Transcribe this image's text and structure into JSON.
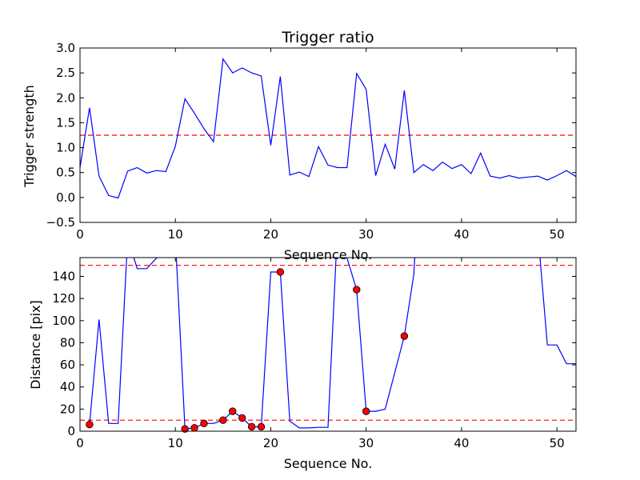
{
  "chart_data": [
    {
      "type": "line",
      "title": "Trigger ratio",
      "xlabel": "Sequence No.",
      "ylabel": "Trigger strength",
      "xlim": [
        0,
        52
      ],
      "ylim": [
        -0.5,
        3.0
      ],
      "xticks": [
        "0",
        "10",
        "20",
        "30",
        "40",
        "50"
      ],
      "yticks": [
        "−0.5",
        "0.0",
        "0.5",
        "1.0",
        "1.5",
        "2.0",
        "2.5",
        "3.0"
      ],
      "threshold": 1.25,
      "colors": {
        "line": "#0000ff",
        "threshold": "#ff0000"
      },
      "series": [
        {
          "x": [
            0,
            1,
            2,
            3,
            4,
            5,
            6,
            7,
            8,
            9,
            10,
            11,
            12,
            13,
            14,
            15,
            16,
            17,
            18,
            19,
            20,
            21,
            22,
            23,
            24,
            25,
            26,
            27,
            28,
            29,
            30,
            31,
            32,
            33,
            34,
            35,
            36,
            37,
            38,
            39,
            40,
            41,
            42,
            43,
            44,
            45,
            46,
            47,
            48,
            49,
            50,
            51,
            52
          ],
          "values": [
            0.6,
            1.8,
            0.43,
            0.04,
            -0.01,
            0.53,
            0.6,
            0.49,
            0.54,
            0.52,
            1.03,
            1.98,
            1.69,
            1.38,
            1.12,
            2.78,
            2.5,
            2.6,
            2.5,
            2.44,
            1.05,
            2.43,
            0.45,
            0.51,
            0.42,
            1.02,
            0.65,
            0.6,
            0.6,
            2.49,
            2.17,
            0.44,
            1.07,
            0.57,
            2.15,
            0.5,
            0.66,
            0.54,
            0.71,
            0.58,
            0.66,
            0.48,
            0.89,
            0.43,
            0.39,
            0.44,
            0.39,
            0.41,
            0.43,
            0.35,
            0.44,
            0.54,
            0.42
          ]
        }
      ]
    },
    {
      "type": "line",
      "title": "",
      "xlabel": "Sequence No.",
      "ylabel": "Distance [pix]",
      "xlim": [
        0,
        52
      ],
      "ylim": [
        0,
        157
      ],
      "xticks": [
        "0",
        "10",
        "20",
        "30",
        "40",
        "50"
      ],
      "yticks": [
        "0",
        "20",
        "40",
        "60",
        "80",
        "100",
        "120",
        "140"
      ],
      "thresholds": [
        10,
        150
      ],
      "colors": {
        "line": "#0000ff",
        "threshold": "#ff0000",
        "marker": "#ff0000"
      },
      "series": [
        {
          "x": [
            1,
            2,
            3,
            4,
            5,
            6,
            7,
            10,
            11,
            12,
            13,
            14,
            15,
            16,
            17,
            18,
            19,
            20,
            21,
            22,
            23,
            24,
            25,
            26,
            27,
            29,
            30,
            31,
            32,
            34,
            35,
            36,
            48,
            49,
            50,
            51,
            52
          ],
          "values": [
            6,
            101,
            7,
            7,
            175,
            147,
            147,
            175,
            2,
            3,
            7,
            7,
            10,
            18,
            12,
            4,
            4,
            144,
            144,
            9,
            3,
            3,
            3.5,
            3.5,
            185,
            128,
            18,
            18,
            20,
            86,
            142,
            300,
            180,
            78,
            78,
            61,
            61
          ]
        }
      ],
      "markers": {
        "x": [
          1,
          11,
          12,
          13,
          15,
          16,
          17,
          18,
          19,
          21,
          29,
          30,
          34
        ],
        "values": [
          6,
          2,
          3,
          7,
          10,
          18,
          12,
          4,
          4,
          144,
          128,
          18,
          86
        ]
      }
    }
  ]
}
